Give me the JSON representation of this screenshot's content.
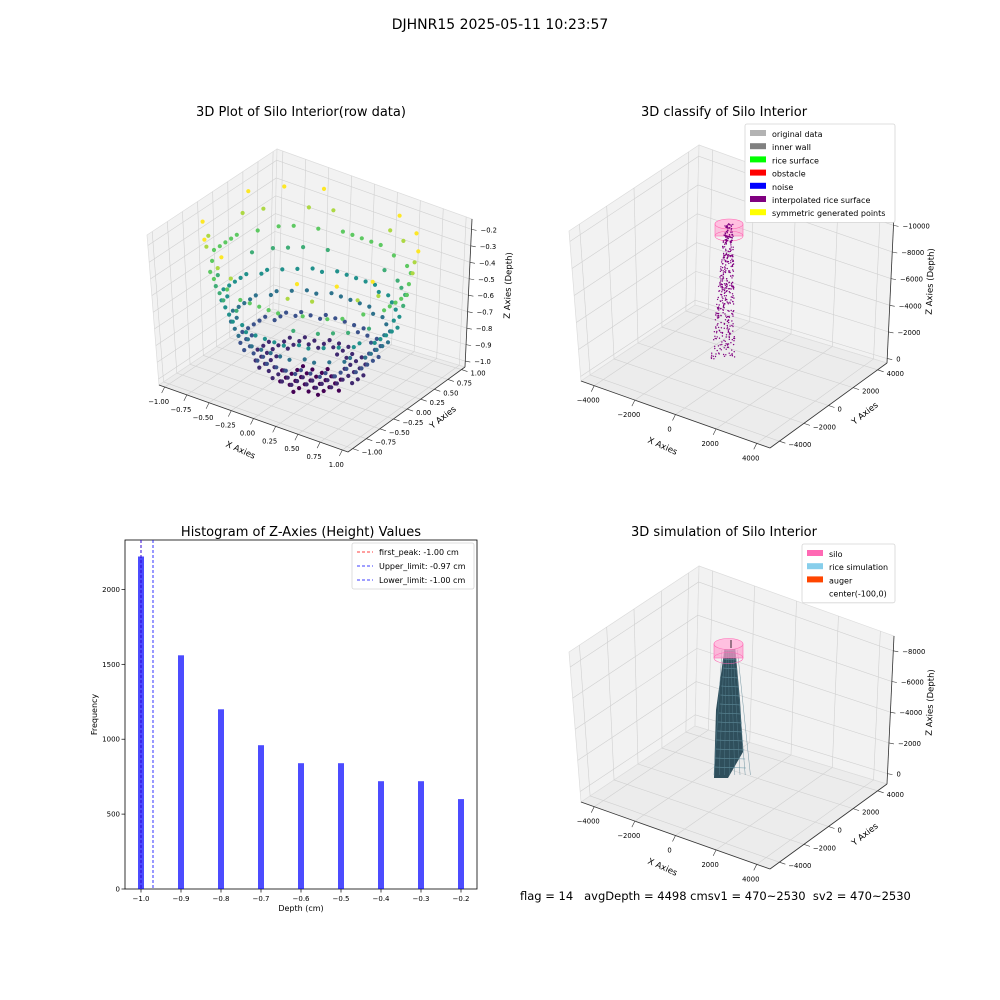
{
  "figure": {
    "title": "DJHNR15 2025-05-11 10:23:57",
    "status_line": "flag = 14   avgDepth = 4498 cmsv1 = 470~2530  sv2 = 470~2530"
  },
  "chart_data": [
    {
      "type": "scatter3d",
      "title": "3D Plot of Silo Interior(row data)",
      "xlabel": "X Axies",
      "ylabel": "Y Axies",
      "zlabel": "Z Axies (Depth)",
      "xlim": [
        -1.0,
        1.0
      ],
      "ylim": [
        -1.0,
        1.0
      ],
      "zlim": [
        -1.0,
        -0.2
      ],
      "xticks": [
        "−1.00",
        "−0.75",
        "−0.50",
        "−0.25",
        "0.00",
        "0.25",
        "0.50",
        "0.75",
        "1.00"
      ],
      "yticks": [
        "−1.00",
        "−0.75",
        "−0.50",
        "−0.25",
        "0.00",
        "0.25",
        "0.50",
        "0.75",
        "1.00"
      ],
      "zticks": [
        "−1.0",
        "−0.9",
        "−0.8",
        "−0.7",
        "−0.6",
        "−0.5",
        "−0.4",
        "−0.3",
        "−0.2"
      ],
      "surface": "z = -sqrt(1 - x^2 - y^2) on a grid, colored by depth (viridis)",
      "grid": true
    },
    {
      "type": "scatter3d",
      "title": "3D classify of Silo Interior",
      "xlabel": "X Axies",
      "ylabel": "Y Axies",
      "zlabel": "Z Axies (Depth)",
      "xlim": [
        -5000,
        5000
      ],
      "ylim": [
        -5000,
        5000
      ],
      "zlim": [
        -11000,
        0
      ],
      "xticks": [
        "−4000",
        "−2000",
        "0",
        "2000",
        "4000"
      ],
      "yticks": [
        "−4000",
        "−2000",
        "0",
        "2000",
        "4000"
      ],
      "zticks": [
        "0",
        "−2000",
        "−4000",
        "−6000",
        "−8000",
        "−10000"
      ],
      "legend_position": "top-right",
      "legend": [
        {
          "label": "original data",
          "color": "#b3b3b3"
        },
        {
          "label": "inner wall",
          "color": "#808080"
        },
        {
          "label": "rice surface",
          "color": "#00ff00"
        },
        {
          "label": "obstacle",
          "color": "#ff0000"
        },
        {
          "label": "noise",
          "color": "#0000ff"
        },
        {
          "label": "interpolated rice surface",
          "color": "#800080"
        },
        {
          "label": "symmetric generated points",
          "color": "#ffff00"
        }
      ],
      "grid": true
    },
    {
      "type": "bar",
      "title": "Histogram of Z-Axies (Height) Values",
      "xlabel": "Depth (cm)",
      "ylabel": "Frequency",
      "x": [
        -1.0,
        -0.9,
        -0.8,
        -0.7,
        -0.6,
        -0.5,
        -0.4,
        -0.3,
        -0.2
      ],
      "values": [
        2220,
        1560,
        1200,
        960,
        840,
        840,
        720,
        720,
        600
      ],
      "xlim": [
        -1.04,
        -0.16
      ],
      "ylim": [
        0,
        2330
      ],
      "xticks": [
        "−1.0",
        "−0.9",
        "−0.8",
        "−0.7",
        "−0.6",
        "−0.5",
        "−0.4",
        "−0.3",
        "−0.2"
      ],
      "yticks": [
        "0",
        "500",
        "1000",
        "1500",
        "2000"
      ],
      "bar_color": "#0000ff",
      "lines": [
        {
          "label": "first_peak: -1.00 cm",
          "x": -1.0,
          "color": "#ff0000"
        },
        {
          "label": "Upper_limit: -0.97 cm",
          "x": -0.97,
          "color": "#0000ff"
        },
        {
          "label": "Lower_limit: -1.00 cm",
          "x": -1.0,
          "color": "#0000ff"
        }
      ],
      "legend_position": "top-right",
      "grid": false
    },
    {
      "type": "surface3d",
      "title": "3D simulation of Silo Interior",
      "xlabel": "X Axies",
      "ylabel": "Y Axies",
      "zlabel": "Z Axies (Depth)",
      "xlim": [
        -5000,
        5000
      ],
      "ylim": [
        -5000,
        5000
      ],
      "zlim": [
        -9500,
        500
      ],
      "xticks": [
        "−4000",
        "−2000",
        "0",
        "2000",
        "4000"
      ],
      "yticks": [
        "−4000",
        "−2000",
        "0",
        "2000",
        "4000"
      ],
      "zticks": [
        "0",
        "−2000",
        "−4000",
        "−6000",
        "−8000"
      ],
      "legend_position": "top-right",
      "legend": [
        {
          "label": "silo",
          "color": "#ff69b4"
        },
        {
          "label": "rice simulation",
          "color": "#87ceeb"
        },
        {
          "label": "auger",
          "color": "#ff4500"
        },
        {
          "label": "center(-100,0)",
          "color": "#ffffff"
        }
      ],
      "grid": true
    }
  ]
}
